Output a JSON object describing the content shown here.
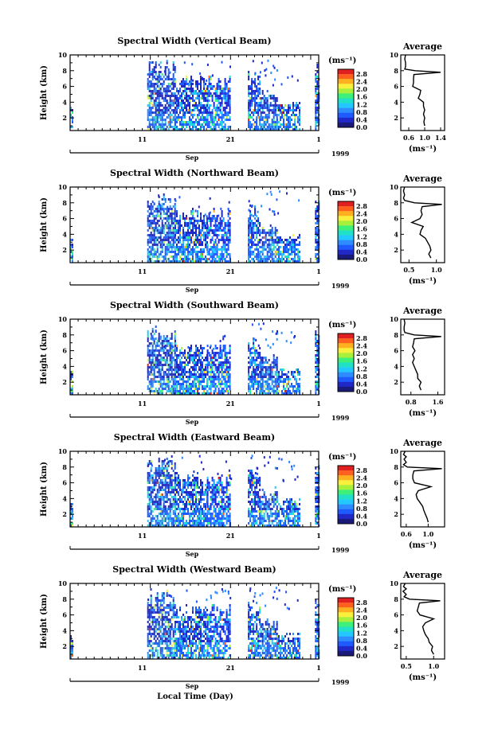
{
  "figure": {
    "xlabel": "Local Time (Day)",
    "colors": {
      "colormap": [
        "#1a1a7a",
        "#2028c8",
        "#1f5aff",
        "#2f8cff",
        "#22c8ff",
        "#20e0c8",
        "#3cf07a",
        "#a8f03c",
        "#f8f03c",
        "#ffb020",
        "#ff6020",
        "#e02020"
      ]
    }
  },
  "chart_data": [
    {
      "type": "heatmap",
      "title": "Spectral Width (Vertical Beam)",
      "ylabel": "Height (km)",
      "yticks": [
        "2",
        "4",
        "6",
        "8",
        "10"
      ],
      "ylim": [
        0.4,
        10
      ],
      "xticks": [
        "11",
        "21",
        "1"
      ],
      "month_label": "Sep",
      "year_label": "1999",
      "colorbar": {
        "unit": "(ms⁻¹)",
        "ticks": [
          "2.8",
          "2.4",
          "2.0",
          "1.6",
          "1.2",
          "0.8",
          "0.4",
          "0.0"
        ]
      },
      "profile": {
        "title": "Average",
        "xlabel": "(ms⁻¹)",
        "xticks": [
          "0.6",
          "1.0",
          "1.4"
        ],
        "xlim": [
          0.4,
          1.5
        ],
        "height_km": [
          1,
          1.5,
          2,
          2.5,
          3,
          3.5,
          4,
          4.5,
          5,
          5.5,
          6,
          6.5,
          7,
          7.5,
          7.8,
          8,
          8.2,
          8.5,
          9,
          9.5,
          10
        ],
        "width": [
          1.0,
          0.98,
          1.0,
          0.97,
          1.0,
          0.97,
          0.97,
          0.84,
          0.88,
          0.9,
          0.7,
          0.72,
          0.72,
          0.73,
          1.4,
          0.76,
          0.5,
          0.52,
          0.52,
          0.5,
          0.52
        ]
      }
    },
    {
      "type": "heatmap",
      "title": "Spectral Width (Northward Beam)",
      "ylabel": "Height (km)",
      "yticks": [
        "2",
        "4",
        "6",
        "8",
        "10"
      ],
      "ylim": [
        0.4,
        10
      ],
      "xticks": [
        "11",
        "21",
        "1"
      ],
      "month_label": "Sep",
      "year_label": "1999",
      "colorbar": {
        "unit": "(ms⁻¹)",
        "ticks": [
          "2.8",
          "2.4",
          "2.0",
          "1.6",
          "1.2",
          "0.8",
          "0.4",
          "0.0"
        ]
      },
      "profile": {
        "title": "Average",
        "xlabel": "(ms⁻¹)",
        "xticks": [
          "0.5",
          "1.0"
        ],
        "xlim": [
          0.35,
          1.15
        ],
        "height_km": [
          1,
          1.5,
          2,
          2.5,
          3,
          3.5,
          4,
          4.5,
          5,
          5.5,
          6,
          6.5,
          7,
          7.5,
          7.8,
          8,
          8.3,
          8.6,
          9,
          9.5,
          10
        ],
        "width": [
          0.9,
          0.86,
          0.9,
          0.88,
          0.84,
          0.8,
          0.7,
          0.72,
          0.76,
          0.55,
          0.7,
          0.74,
          0.72,
          0.74,
          1.1,
          0.6,
          0.42,
          0.4,
          0.42,
          0.4,
          0.42
        ]
      }
    },
    {
      "type": "heatmap",
      "title": "Spectral Width (Southward Beam)",
      "ylabel": "Height (km)",
      "yticks": [
        "2",
        "4",
        "6",
        "8",
        "10"
      ],
      "ylim": [
        0.4,
        10
      ],
      "xticks": [
        "11",
        "21",
        "1"
      ],
      "month_label": "Sep",
      "year_label": "1999",
      "colorbar": {
        "unit": "(ms⁻¹)",
        "ticks": [
          "2.8",
          "2.4",
          "2.0",
          "1.6",
          "1.2",
          "0.8",
          "0.4",
          "0.0"
        ]
      },
      "profile": {
        "title": "Average",
        "xlabel": "(ms⁻¹)",
        "xticks": [
          "0.8",
          "1.6"
        ],
        "xlim": [
          0.5,
          1.8
        ],
        "height_km": [
          1,
          1.5,
          2,
          2.5,
          3,
          3.5,
          4,
          4.5,
          5,
          5.5,
          6,
          6.5,
          7,
          7.5,
          7.8,
          8,
          8.3,
          8.6,
          9,
          9.5,
          10
        ],
        "width": [
          1.1,
          1.05,
          1.1,
          1.0,
          1.0,
          0.95,
          0.9,
          0.85,
          0.9,
          0.85,
          0.92,
          0.85,
          0.88,
          0.9,
          1.7,
          0.9,
          0.62,
          0.6,
          0.6,
          0.62,
          0.6
        ]
      }
    },
    {
      "type": "heatmap",
      "title": "Spectral Width (Eastward Beam)",
      "ylabel": "Height (km)",
      "yticks": [
        "2",
        "4",
        "6",
        "8",
        "10"
      ],
      "ylim": [
        0.4,
        10
      ],
      "xticks": [
        "11",
        "21",
        "1"
      ],
      "month_label": "Sep",
      "year_label": "1999",
      "colorbar": {
        "unit": "(ms⁻¹)",
        "ticks": [
          "2.8",
          "2.4",
          "2.0",
          "1.6",
          "1.2",
          "0.8",
          "0.4",
          "0.0"
        ]
      },
      "profile": {
        "title": "Average",
        "xlabel": "(ms⁻¹)",
        "xticks": [
          "0.6",
          "1.0"
        ],
        "xlim": [
          0.5,
          1.3
        ],
        "height_km": [
          1,
          1.5,
          2,
          2.5,
          3,
          3.5,
          4,
          4.5,
          5,
          5.5,
          6,
          6.5,
          7,
          7.5,
          7.8,
          8,
          8.3,
          8.6,
          9,
          9.3,
          9.6,
          10
        ],
        "width": [
          1.0,
          0.98,
          0.95,
          0.92,
          0.9,
          0.85,
          0.8,
          0.78,
          0.82,
          1.05,
          0.75,
          0.72,
          0.72,
          0.74,
          1.25,
          0.62,
          0.55,
          0.6,
          0.56,
          0.6,
          0.55,
          0.58
        ]
      }
    },
    {
      "type": "heatmap",
      "title": "Spectral Width (Westward Beam)",
      "ylabel": "Height (km)",
      "yticks": [
        "2",
        "4",
        "6",
        "8",
        "10"
      ],
      "ylim": [
        0.4,
        10
      ],
      "xticks": [
        "11",
        "21",
        "1"
      ],
      "month_label": "Sep",
      "year_label": "1999",
      "colorbar": {
        "unit": "(ms⁻¹)",
        "ticks": [
          "2.8",
          "2.4",
          "2.0",
          "1.6",
          "1.2",
          "0.8",
          "0.4",
          "0.0"
        ]
      },
      "profile": {
        "title": "Average",
        "xlabel": "(ms⁻¹)",
        "xticks": [
          "0.5",
          "1.0"
        ],
        "xlim": [
          0.4,
          1.2
        ],
        "height_km": [
          1,
          1.5,
          2,
          2.5,
          3,
          3.5,
          4,
          4.5,
          5,
          5.5,
          6,
          6.5,
          7,
          7.5,
          7.8,
          8,
          8.3,
          8.6,
          9,
          9.3,
          9.6,
          10
        ],
        "width": [
          1.0,
          0.96,
          0.98,
          0.92,
          0.9,
          0.85,
          0.82,
          0.8,
          0.85,
          1.0,
          0.75,
          0.7,
          0.72,
          0.74,
          1.12,
          0.56,
          0.46,
          0.5,
          0.44,
          0.5,
          0.45,
          0.48
        ]
      }
    }
  ]
}
